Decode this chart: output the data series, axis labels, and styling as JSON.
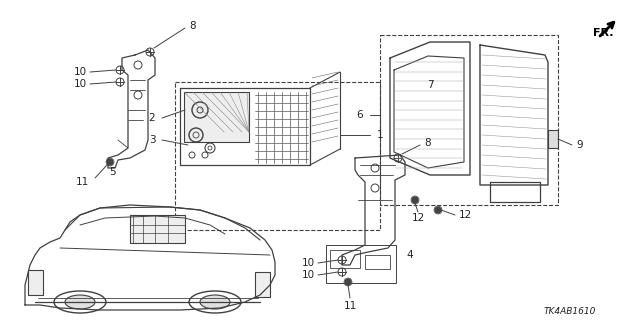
{
  "bg_color": "#ffffff",
  "diagram_id": "TK4AB1610",
  "lc": "#404040",
  "tc": "#222222",
  "fontsize_label": 7.5,
  "fontsize_id": 6.5
}
